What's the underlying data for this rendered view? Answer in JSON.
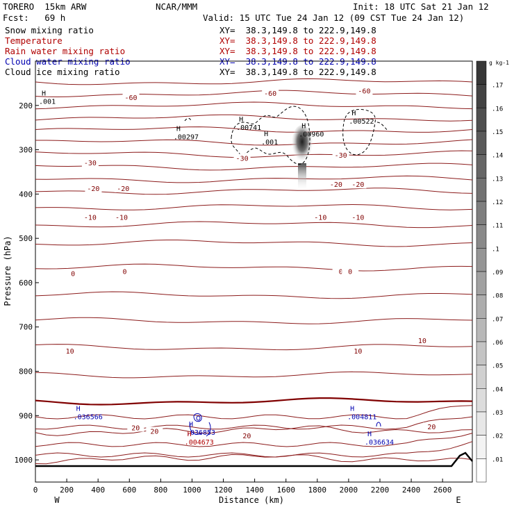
{
  "header": {
    "model": "TORERO  15km ARW",
    "fcst": "Fcst:   69 h",
    "org": "NCAR/MMM",
    "init": "Init: 18 UTC Sat 21 Jan 12",
    "valid": "Valid: 15 UTC Tue 24 Jan 12 (09 CST Tue 24 Jan 12)"
  },
  "fields": [
    {
      "label": "Snow mixing ratio",
      "color": "#000000",
      "xy": "XY=  38.3,149.8 to 222.9,149.8"
    },
    {
      "label": "Temperature",
      "color": "#b00000",
      "xy": "XY=  38.3,149.8 to 222.9,149.8"
    },
    {
      "label": "Rain water mixing ratio",
      "color": "#b00000",
      "xy": "XY=  38.3,149.8 to 222.9,149.8"
    },
    {
      "label": "Cloud water mixing ratio",
      "color": "#0000b0",
      "xy": "XY=  38.3,149.8 to 222.9,149.8"
    },
    {
      "label": "Cloud ice mixing ratio",
      "color": "#000000",
      "xy": "XY=  38.3,149.8 to 222.9,149.8"
    }
  ],
  "chart_data": {
    "type": "heatmap",
    "xlabel": "Distance (km)",
    "ylabel": "Pressure (hPa)",
    "x_left_label": "W",
    "x_right_label": "E",
    "xlim": [
      0,
      2790
    ],
    "ylim": [
      1050,
      100
    ],
    "x_ticks": [
      "0",
      "200",
      "400",
      "600",
      "800",
      "1000",
      "1200",
      "1400",
      "1600",
      "1800",
      "2000",
      "2200",
      "2400",
      "2600"
    ],
    "y_ticks": [
      "200",
      "300",
      "400",
      "500",
      "600",
      "700",
      "800",
      "900",
      "1000"
    ],
    "colorbar": {
      "unit": "g kg-1",
      "ticks": [
        ".01",
        ".02",
        ".03",
        ".04",
        ".05",
        ".06",
        ".07",
        ".08",
        ".09",
        ".1",
        ".11",
        ".12",
        ".13",
        ".14",
        ".15",
        ".16",
        ".17"
      ]
    },
    "isotherm_labels": [
      {
        "text": "-60",
        "x": 610,
        "p": 185
      },
      {
        "text": "-60",
        "x": 1500,
        "p": 175
      },
      {
        "text": "-60",
        "x": 2100,
        "p": 170
      },
      {
        "text": "-30",
        "x": 350,
        "p": 332
      },
      {
        "text": "-30",
        "x": 1320,
        "p": 322
      },
      {
        "text": "-30",
        "x": 1950,
        "p": 315
      },
      {
        "text": "-20",
        "x": 370,
        "p": 390
      },
      {
        "text": "-20",
        "x": 560,
        "p": 390
      },
      {
        "text": "-20",
        "x": 1920,
        "p": 381
      },
      {
        "text": "-20",
        "x": 2060,
        "p": 381
      },
      {
        "text": "-10",
        "x": 350,
        "p": 455
      },
      {
        "text": "-10",
        "x": 550,
        "p": 455
      },
      {
        "text": "-10",
        "x": 1820,
        "p": 455
      },
      {
        "text": "-10",
        "x": 2060,
        "p": 455
      },
      {
        "text": "0",
        "x": 240,
        "p": 582
      },
      {
        "text": "0",
        "x": 570,
        "p": 577
      },
      {
        "text": "0",
        "x": 1950,
        "p": 577
      },
      {
        "text": "0",
        "x": 2010,
        "p": 577
      },
      {
        "text": "10",
        "x": 220,
        "p": 757
      },
      {
        "text": "10",
        "x": 2060,
        "p": 757
      },
      {
        "text": "10",
        "x": 2470,
        "p": 733
      },
      {
        "text": "20",
        "x": 640,
        "p": 930
      },
      {
        "text": "20",
        "x": 760,
        "p": 938
      },
      {
        "text": "20",
        "x": 1350,
        "p": 948
      },
      {
        "text": "20",
        "x": 2530,
        "p": 928
      }
    ],
    "maxima": [
      {
        "text": ".00297",
        "x": 900,
        "p": 273,
        "color": "#000000"
      },
      {
        "text": ".00741",
        "x": 1300,
        "p": 252,
        "color": "#000000"
      },
      {
        "text": ".001",
        "x": 1460,
        "p": 285,
        "color": "#000000"
      },
      {
        "text": ".00960",
        "x": 1700,
        "p": 267,
        "color": "#000000"
      },
      {
        "text": ".00522",
        "x": 2020,
        "p": 238,
        "color": "#000000"
      },
      {
        "text": ".001",
        "x": 40,
        "p": 193,
        "color": "#000000"
      },
      {
        "text": ".036566",
        "x": 260,
        "p": 905,
        "color": "#0000b0"
      },
      {
        "text": ".036853",
        "x": 980,
        "p": 940,
        "color": "#0000b0"
      },
      {
        "text": ".004673",
        "x": 970,
        "p": 962,
        "color": "#b00000"
      },
      {
        "text": ".004811",
        "x": 2010,
        "p": 905,
        "color": "#0000b0"
      },
      {
        "text": ".036634",
        "x": 2120,
        "p": 962,
        "color": "#0000b0"
      }
    ]
  }
}
